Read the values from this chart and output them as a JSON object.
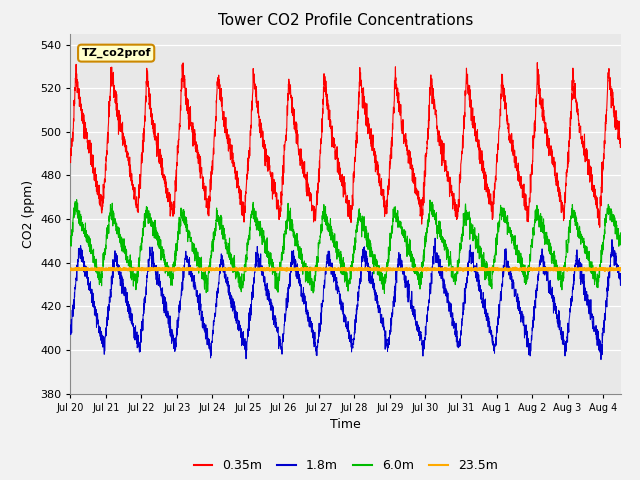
{
  "title": "Tower CO2 Profile Concentrations",
  "xlabel": "Time",
  "ylabel": "CO2 (ppm)",
  "ylim": [
    380,
    545
  ],
  "yticks": [
    380,
    400,
    420,
    440,
    460,
    480,
    500,
    520,
    540
  ],
  "xtick_labels": [
    "Jul 20",
    "Jul 21",
    "Jul 22",
    "Jul 23",
    "Jul 24",
    "Jul 25",
    "Jul 26",
    "Jul 27",
    "Jul 28",
    "Jul 29",
    "Jul 30",
    "Jul 31",
    "Aug 1",
    "Aug 2",
    "Aug 3",
    "Aug 4"
  ],
  "color_red": "#ff0000",
  "color_blue": "#0000cc",
  "color_green": "#00bb00",
  "color_orange": "#ffaa00",
  "legend_labels": [
    "0.35m",
    "1.8m",
    "6.0m",
    "23.5m"
  ],
  "annotation_text": "TZ_co2prof",
  "annotation_bg": "#ffffcc",
  "annotation_border": "#cc8800",
  "plot_bg": "#e8e8e8",
  "fig_bg": "#f2f2f2",
  "grid_color": "#ffffff",
  "n_days": 15.5,
  "orange_value": 437,
  "seed": 42
}
